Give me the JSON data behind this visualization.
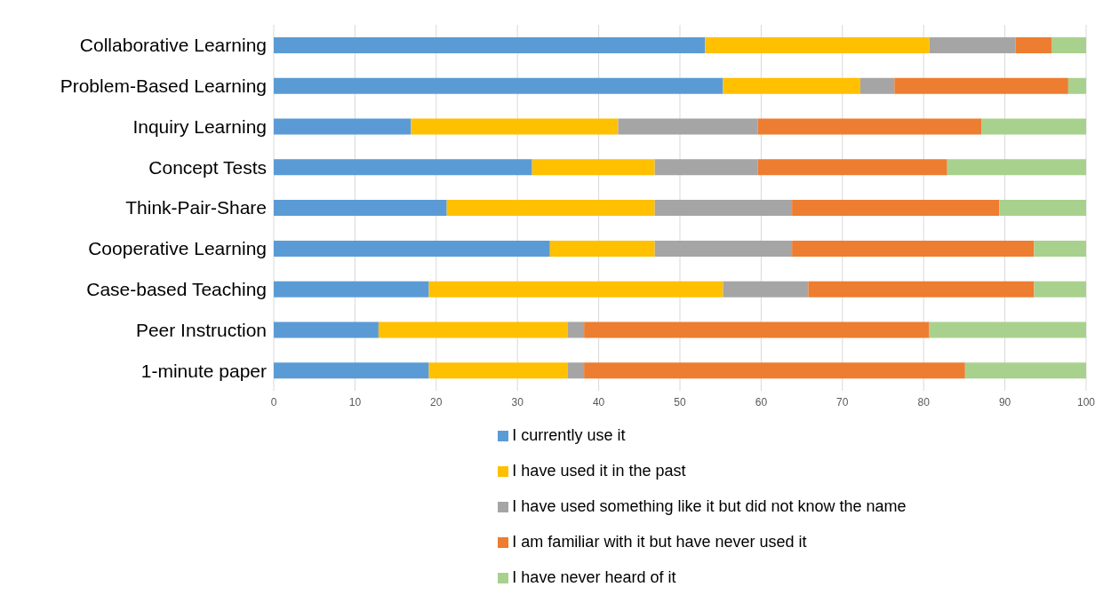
{
  "chart_data": {
    "type": "bar",
    "orientation": "horizontal",
    "stacked": true,
    "categories": [
      "Collaborative Learning",
      "Problem-Based Learning",
      "Inquiry Learning",
      "Concept Tests",
      "Think-Pair-Share",
      "Cooperative Learning",
      "Case-based Teaching",
      "Peer Instruction",
      "1-minute paper"
    ],
    "series": [
      {
        "name": "I currently use it",
        "color": "#5b9bd5",
        "values": [
          53.1,
          55.3,
          16.9,
          31.8,
          21.3,
          34,
          19.1,
          12.9,
          19.1
        ]
      },
      {
        "name": "I have used it in the past",
        "color": "#ffc000",
        "values": [
          27.6,
          16.9,
          25.5,
          15.1,
          25.6,
          12.9,
          36.2,
          23.3,
          17.1
        ]
      },
      {
        "name": "I have used something like it but did not know the name",
        "color": "#a5a5a5",
        "values": [
          10.6,
          4.2,
          17.2,
          12.7,
          16.9,
          16.9,
          10.5,
          2,
          2
        ]
      },
      {
        "name": "I am familiar with it but have never used it",
        "color": "#ed7d31",
        "values": [
          4.5,
          21.4,
          27.5,
          23.3,
          25.5,
          29.8,
          27.8,
          42.5,
          46.9
        ]
      },
      {
        "name": "I have never heard of it",
        "color": "#a9d18e",
        "values": [
          4.2,
          2.2,
          12.9,
          17.1,
          10.7,
          6.4,
          6.4,
          19.3,
          14.9
        ]
      }
    ],
    "xlim": [
      0,
      100
    ],
    "xticks": [
      0,
      10,
      20,
      30,
      40,
      50,
      60,
      70,
      80,
      90,
      100
    ],
    "grid": "x",
    "legend": "bottom"
  }
}
